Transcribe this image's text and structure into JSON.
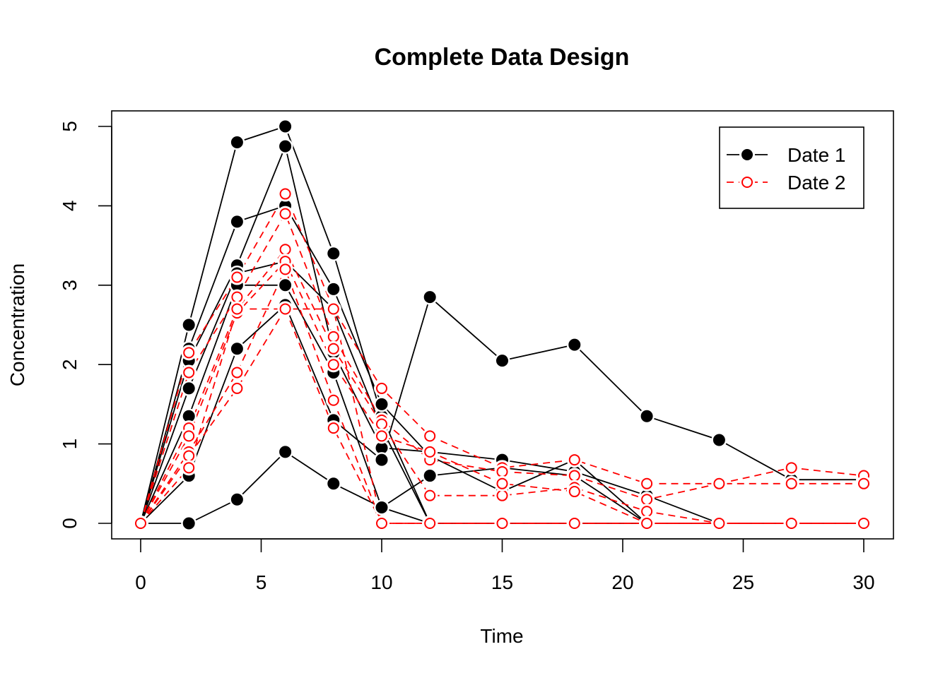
{
  "chart_data": {
    "type": "line",
    "title": "Complete Data Design",
    "xlabel": "Time",
    "ylabel": "Concentration",
    "xlim": [
      0,
      30
    ],
    "ylim": [
      0,
      5
    ],
    "x_ticks": [
      0,
      5,
      10,
      15,
      20,
      25,
      30
    ],
    "y_ticks": [
      0,
      1,
      2,
      3,
      4,
      5
    ],
    "grid": false,
    "legend_position": "top-right",
    "legend": [
      {
        "label": "Date 1",
        "color": "#000000",
        "marker": "filled-circle",
        "linestyle": "solid"
      },
      {
        "label": "Date 2",
        "color": "#ff0000",
        "marker": "open-circle",
        "linestyle": "dashed"
      }
    ],
    "x": [
      0,
      2,
      4,
      6,
      8,
      10,
      12,
      15,
      18,
      21,
      24,
      27,
      30
    ],
    "groups": [
      {
        "name": "Date 1",
        "color": "#000000",
        "subjects": [
          [
            0,
            2.5,
            4.8,
            5.0,
            3.4,
            1.35,
            0,
            0,
            0,
            0,
            0,
            0,
            0
          ],
          [
            0,
            2.2,
            3.8,
            4.0,
            2.95,
            1.5,
            0.85,
            0.4,
            0.8,
            0,
            0,
            0,
            0
          ],
          [
            0,
            2.05,
            3.25,
            4.75,
            2.15,
            0.95,
            0.9,
            0.8,
            0.65,
            0.35,
            0,
            0,
            0
          ],
          [
            0,
            1.7,
            3.15,
            3.3,
            2.7,
            1.2,
            0,
            0,
            0,
            0,
            0,
            0,
            0
          ],
          [
            0,
            1.35,
            3.0,
            3.0,
            1.9,
            0.2,
            0.6,
            0.7,
            0.6,
            0,
            0,
            0,
            0
          ],
          [
            0,
            0.6,
            2.2,
            2.75,
            1.3,
            0.8,
            2.85,
            2.05,
            2.25,
            1.35,
            1.05,
            0.55,
            0.55
          ],
          [
            0,
            0,
            0.3,
            0.9,
            0.5,
            0.2,
            0,
            0,
            0,
            0,
            0,
            0,
            0
          ]
        ]
      },
      {
        "name": "Date 2",
        "color": "#ff0000",
        "subjects": [
          [
            0,
            2.15,
            3.1,
            4.15,
            2.7,
            1.7,
            1.1,
            0.7,
            0.8,
            0.5,
            0.5,
            0.7,
            0.6
          ],
          [
            0,
            1.9,
            2.85,
            3.9,
            2.35,
            1.3,
            0.8,
            0.65,
            0.6,
            0.3,
            0.5,
            0.5,
            0.5
          ],
          [
            0,
            1.2,
            2.7,
            3.45,
            2.2,
            1.25,
            0.35,
            0.35,
            0.45,
            0.15,
            0,
            0,
            0
          ],
          [
            0,
            1.1,
            2.65,
            3.3,
            2.0,
            1.1,
            0.9,
            0.5,
            0.4,
            0,
            0,
            0,
            0
          ],
          [
            0,
            0.9,
            1.9,
            3.2,
            1.55,
            0,
            0,
            0,
            0,
            0,
            0,
            0,
            0
          ],
          [
            0,
            0.85,
            1.7,
            2.7,
            2.7,
            0,
            0,
            0,
            0,
            0,
            0,
            0,
            0
          ],
          [
            0,
            0.7,
            2.7,
            2.7,
            1.2,
            0,
            0,
            0,
            0,
            0,
            0,
            0,
            0
          ]
        ]
      }
    ]
  }
}
